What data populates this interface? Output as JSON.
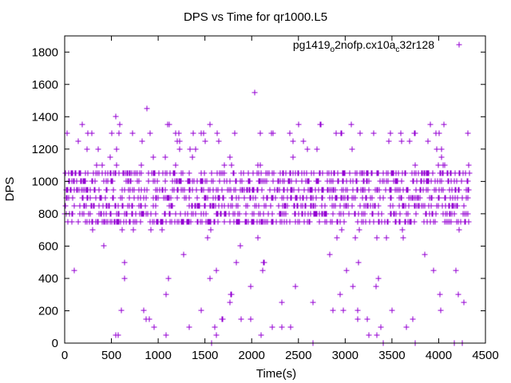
{
  "chart_data": {
    "type": "scatter",
    "title": "DPS vs Time for qr1000.L5",
    "xlabel": "Time(s)",
    "ylabel": "DPS",
    "xlim": [
      0,
      4500
    ],
    "ylim": [
      0,
      1900
    ],
    "xticks": [
      0,
      500,
      1000,
      1500,
      2000,
      2500,
      3000,
      3500,
      4000,
      4500
    ],
    "yticks": [
      0,
      200,
      400,
      600,
      800,
      1000,
      1200,
      1400,
      1600,
      1800
    ],
    "marker": "+",
    "color": "#9400d3",
    "legend_position": "top-right",
    "series": [
      {
        "name": "pg1419_o2nofp.cx10a_c32r128",
        "x_range": [
          0,
          4330
        ],
        "dense_levels": [
          750,
          800,
          850,
          900,
          950,
          1000,
          1050
        ],
        "sparse_levels": [
          0,
          50,
          100,
          150,
          200,
          250,
          300,
          350,
          400,
          450,
          500,
          550,
          600,
          650,
          700,
          1100,
          1150,
          1200,
          1250,
          1300,
          1350
        ],
        "notable_points": [
          {
            "x": 100,
            "y": 450
          },
          {
            "x": 420,
            "y": 600
          },
          {
            "x": 550,
            "y": 1400
          },
          {
            "x": 880,
            "y": 1450
          },
          {
            "x": 1100,
            "y": 1350
          },
          {
            "x": 1550,
            "y": 1350
          },
          {
            "x": 2030,
            "y": 1550
          },
          {
            "x": 2730,
            "y": 1350
          },
          {
            "x": 4310,
            "y": 1300
          }
        ]
      }
    ]
  }
}
